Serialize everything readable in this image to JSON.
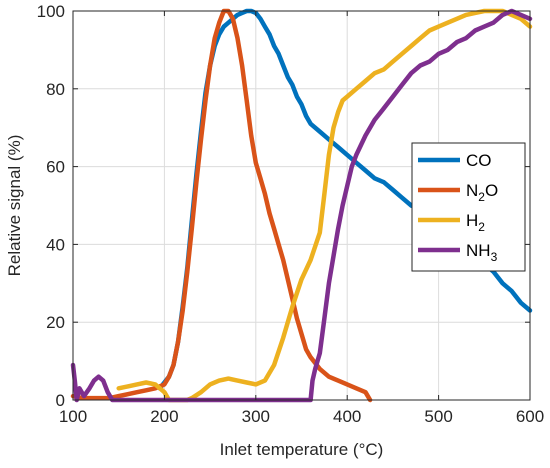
{
  "chart_data": {
    "type": "line",
    "title": "",
    "xlabel": "Inlet temperature (°C)",
    "ylabel": "Relative signal (%)",
    "xlim": [
      100,
      600
    ],
    "ylim": [
      0,
      100
    ],
    "x_ticks": [
      100,
      200,
      300,
      400,
      500,
      600
    ],
    "y_ticks": [
      0,
      20,
      40,
      60,
      80,
      100
    ],
    "grid": true,
    "legend_position": "right",
    "series": [
      {
        "name": "CO",
        "legend": {
          "base": "CO",
          "sub": "",
          "tail": ""
        },
        "color": "#0072BD",
        "points": [
          [
            195,
            3
          ],
          [
            205,
            6
          ],
          [
            210,
            9
          ],
          [
            215,
            15
          ],
          [
            220,
            24
          ],
          [
            225,
            34
          ],
          [
            230,
            46
          ],
          [
            235,
            58
          ],
          [
            240,
            69
          ],
          [
            245,
            79
          ],
          [
            250,
            86
          ],
          [
            255,
            91
          ],
          [
            260,
            94
          ],
          [
            265,
            96
          ],
          [
            270,
            97
          ],
          [
            275,
            98
          ],
          [
            280,
            99
          ],
          [
            285,
            99.5
          ],
          [
            290,
            100
          ],
          [
            295,
            100
          ],
          [
            300,
            99.5
          ],
          [
            305,
            98
          ],
          [
            310,
            96
          ],
          [
            315,
            94
          ],
          [
            320,
            91
          ],
          [
            325,
            89
          ],
          [
            330,
            86
          ],
          [
            335,
            83
          ],
          [
            340,
            81
          ],
          [
            345,
            78
          ],
          [
            350,
            76
          ],
          [
            355,
            73
          ],
          [
            360,
            71
          ],
          [
            370,
            69
          ],
          [
            380,
            67
          ],
          [
            390,
            65
          ],
          [
            400,
            63
          ],
          [
            410,
            61
          ],
          [
            420,
            59
          ],
          [
            430,
            57
          ],
          [
            440,
            56
          ],
          [
            450,
            54
          ],
          [
            460,
            52
          ],
          [
            470,
            50
          ],
          [
            480,
            49
          ],
          [
            490,
            47
          ],
          [
            500,
            45
          ],
          [
            510,
            43
          ],
          [
            520,
            41
          ],
          [
            530,
            39
          ],
          [
            540,
            37
          ],
          [
            550,
            35
          ],
          [
            560,
            33
          ],
          [
            570,
            30
          ],
          [
            580,
            28
          ],
          [
            590,
            25
          ],
          [
            600,
            23
          ]
        ]
      },
      {
        "name": "N2O",
        "legend": {
          "base": "N",
          "sub": "2",
          "tail": "O"
        },
        "color": "#D95319",
        "points": [
          [
            100,
            1
          ],
          [
            110,
            0.5
          ],
          [
            120,
            0.5
          ],
          [
            130,
            0.5
          ],
          [
            140,
            0.5
          ],
          [
            150,
            1
          ],
          [
            160,
            1.5
          ],
          [
            170,
            2
          ],
          [
            180,
            2.5
          ],
          [
            190,
            3
          ],
          [
            200,
            4
          ],
          [
            205,
            6
          ],
          [
            210,
            9
          ],
          [
            215,
            15
          ],
          [
            220,
            23
          ],
          [
            225,
            33
          ],
          [
            230,
            44
          ],
          [
            235,
            56
          ],
          [
            240,
            67
          ],
          [
            245,
            77
          ],
          [
            250,
            86
          ],
          [
            255,
            93
          ],
          [
            260,
            97
          ],
          [
            265,
            100
          ],
          [
            270,
            100
          ],
          [
            275,
            98
          ],
          [
            280,
            93
          ],
          [
            285,
            86
          ],
          [
            290,
            77
          ],
          [
            295,
            68
          ],
          [
            300,
            61
          ],
          [
            305,
            57
          ],
          [
            310,
            53
          ],
          [
            315,
            48
          ],
          [
            320,
            44
          ],
          [
            325,
            40
          ],
          [
            330,
            36
          ],
          [
            335,
            31
          ],
          [
            340,
            26
          ],
          [
            345,
            21
          ],
          [
            350,
            17
          ],
          [
            355,
            13
          ],
          [
            360,
            11
          ],
          [
            370,
            8
          ],
          [
            380,
            6
          ],
          [
            390,
            5
          ],
          [
            400,
            4
          ],
          [
            410,
            3
          ],
          [
            420,
            2
          ],
          [
            425,
            0
          ]
        ]
      },
      {
        "name": "H2",
        "legend": {
          "base": "H",
          "sub": "2",
          "tail": ""
        },
        "color": "#EDB120",
        "points": [
          [
            150,
            3
          ],
          [
            160,
            3.5
          ],
          [
            170,
            4
          ],
          [
            180,
            4.5
          ],
          [
            190,
            4
          ],
          [
            200,
            2
          ],
          [
            205,
            0
          ],
          [
            225,
            0
          ],
          [
            230,
            0.5
          ],
          [
            240,
            2
          ],
          [
            250,
            4
          ],
          [
            260,
            5
          ],
          [
            270,
            5.5
          ],
          [
            280,
            5
          ],
          [
            290,
            4.5
          ],
          [
            300,
            4
          ],
          [
            310,
            5
          ],
          [
            320,
            9
          ],
          [
            330,
            16
          ],
          [
            340,
            24
          ],
          [
            350,
            31
          ],
          [
            360,
            36
          ],
          [
            370,
            43
          ],
          [
            375,
            53
          ],
          [
            380,
            63
          ],
          [
            385,
            70
          ],
          [
            390,
            74
          ],
          [
            395,
            77
          ],
          [
            400,
            78
          ],
          [
            410,
            80
          ],
          [
            420,
            82
          ],
          [
            430,
            84
          ],
          [
            440,
            85
          ],
          [
            450,
            87
          ],
          [
            460,
            89
          ],
          [
            470,
            91
          ],
          [
            480,
            93
          ],
          [
            490,
            95
          ],
          [
            500,
            96
          ],
          [
            510,
            97
          ],
          [
            520,
            98
          ],
          [
            530,
            99
          ],
          [
            540,
            99.5
          ],
          [
            550,
            100
          ],
          [
            560,
            100
          ],
          [
            570,
            100
          ],
          [
            580,
            99
          ],
          [
            590,
            98
          ],
          [
            600,
            96
          ]
        ]
      },
      {
        "name": "NH3",
        "legend": {
          "base": "NH",
          "sub": "3",
          "tail": ""
        },
        "color": "#7E2F8E",
        "points": [
          [
            100,
            9
          ],
          [
            102,
            5
          ],
          [
            104,
            0
          ],
          [
            107,
            3
          ],
          [
            112,
            1
          ],
          [
            118,
            3
          ],
          [
            123,
            5
          ],
          [
            128,
            6
          ],
          [
            133,
            5
          ],
          [
            138,
            2
          ],
          [
            143,
            0
          ],
          [
            360,
            0
          ],
          [
            362,
            5
          ],
          [
            365,
            8
          ],
          [
            370,
            12
          ],
          [
            375,
            21
          ],
          [
            380,
            30
          ],
          [
            385,
            37
          ],
          [
            390,
            44
          ],
          [
            395,
            50
          ],
          [
            400,
            55
          ],
          [
            405,
            60
          ],
          [
            410,
            63
          ],
          [
            420,
            68
          ],
          [
            430,
            72
          ],
          [
            440,
            75
          ],
          [
            450,
            78
          ],
          [
            460,
            81
          ],
          [
            470,
            84
          ],
          [
            480,
            86
          ],
          [
            490,
            87
          ],
          [
            500,
            89
          ],
          [
            510,
            90
          ],
          [
            520,
            92
          ],
          [
            530,
            93
          ],
          [
            540,
            95
          ],
          [
            550,
            96
          ],
          [
            560,
            97
          ],
          [
            570,
            99
          ],
          [
            580,
            100
          ],
          [
            590,
            99
          ],
          [
            600,
            98
          ]
        ]
      }
    ]
  }
}
